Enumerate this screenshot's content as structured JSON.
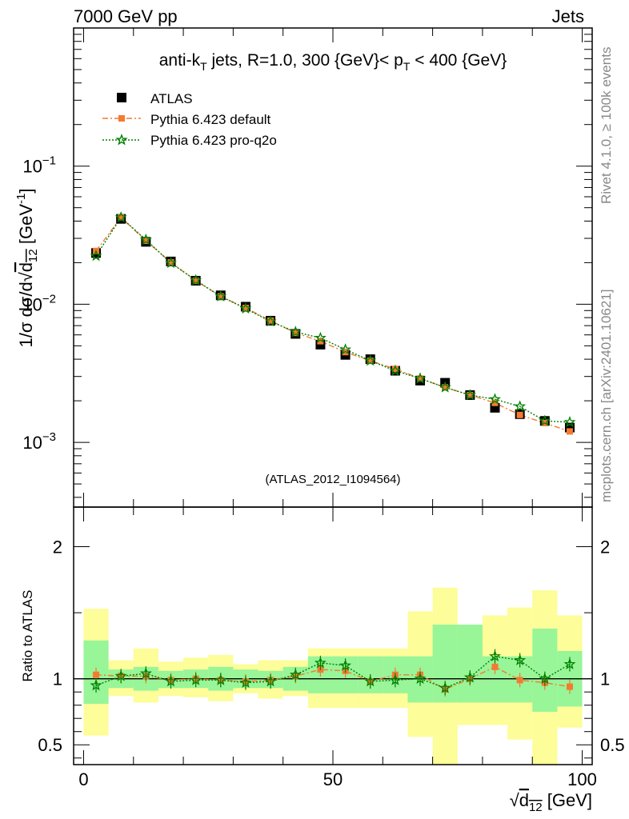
{
  "header": {
    "left": "7000 GeV pp",
    "right": "Jets"
  },
  "side": {
    "rivet": "Rivet 4.1.0, ≥ 100k events",
    "source": "mcplots.cern.ch [arXiv:2401.10621]"
  },
  "colors": {
    "atlas": "#000000",
    "default": "#f47a30",
    "proq2o": "#008000",
    "band_inner": "#98f598",
    "band_outer": "#fdfd99"
  },
  "chart_data": [
    {
      "type": "scatter",
      "panel": "main",
      "title_parts": {
        "lead": "anti-k",
        "lead_sub": "T",
        "mid": " jets, R=1.0, 300 {GeV}< p",
        "mid_sub": "T",
        "tail": " < 400 {GeV}"
      },
      "ylabel_parts": {
        "lead": "1/σ dσ/d",
        "root_sub": "12",
        "root_d": "d",
        "tail": " [GeV",
        "tail_sup": "-1",
        "end": "]"
      },
      "yscale": "log",
      "ylim": [
        0.00034,
        1.0
      ],
      "xlim": [
        -2,
        102
      ],
      "ytick_labels": [
        "10",
        "10",
        "10"
      ],
      "ytick_exponents": [
        "−1",
        "−2",
        "−3"
      ],
      "ytick_values": [
        0.1,
        0.01,
        0.001
      ],
      "watermark": "(ATLAS_2012_I1094564)",
      "legend": [
        "ATLAS",
        "Pythia 6.423 default",
        "Pythia 6.423 pro-q2o"
      ],
      "x": [
        2.5,
        7.5,
        12.5,
        17.5,
        22.5,
        27.5,
        32.5,
        37.5,
        42.5,
        47.5,
        52.5,
        57.5,
        62.5,
        67.5,
        72.5,
        77.5,
        82.5,
        87.5,
        92.5,
        97.5
      ],
      "series": [
        {
          "name": "ATLAS",
          "values": [
            0.0235,
            0.0415,
            0.0283,
            0.0204,
            0.0148,
            0.0116,
            0.0096,
            0.0076,
            0.0061,
            0.0051,
            0.0043,
            0.004,
            0.0033,
            0.0028,
            0.0027,
            0.0022,
            0.00178,
            0.0016,
            0.00143,
            0.00128
          ]
        },
        {
          "name": "Pythia 6.423 default",
          "values": [
            0.0243,
            0.0425,
            0.0288,
            0.0201,
            0.0148,
            0.0114,
            0.0094,
            0.0076,
            0.0062,
            0.0054,
            0.0045,
            0.0039,
            0.0034,
            0.0029,
            0.0025,
            0.0022,
            0.00193,
            0.00158,
            0.00138,
            0.0012
          ]
        },
        {
          "name": "Pythia 6.423 pro-q2o",
          "values": [
            0.0224,
            0.0425,
            0.0293,
            0.0199,
            0.0149,
            0.0114,
            0.0093,
            0.0075,
            0.0063,
            0.0057,
            0.0047,
            0.0039,
            0.0033,
            0.0029,
            0.0025,
            0.0022,
            0.00205,
            0.00182,
            0.00143,
            0.0014
          ]
        }
      ]
    },
    {
      "type": "scatter",
      "panel": "ratio",
      "ylabel": "Ratio to ATLAS",
      "ylim": [
        0.35,
        2.3
      ],
      "xlim": [
        -2,
        102
      ],
      "ytick_labels": [
        "2",
        "1",
        "0.5"
      ],
      "ytick_values": [
        2,
        1,
        0.5
      ],
      "xtick_labels": [
        "0",
        "50",
        "100"
      ],
      "xtick_values": [
        0,
        50,
        100
      ],
      "xlabel_parts": {
        "root_d": "d",
        "root_sub": "12",
        "tail": " [GeV]"
      },
      "x": [
        2.5,
        7.5,
        12.5,
        17.5,
        22.5,
        27.5,
        32.5,
        37.5,
        42.5,
        47.5,
        52.5,
        57.5,
        62.5,
        67.5,
        72.5,
        77.5,
        82.5,
        87.5,
        92.5,
        97.5
      ],
      "bin_edges": [
        0,
        5,
        10,
        15,
        20,
        25,
        30,
        35,
        40,
        45,
        50,
        55,
        60,
        65,
        70,
        75,
        80,
        85,
        90,
        95,
        100
      ],
      "band_inner": [
        [
          0.81,
          1.29
        ],
        [
          0.93,
          1.07
        ],
        [
          0.91,
          1.09
        ],
        [
          0.93,
          1.06
        ],
        [
          0.93,
          1.07
        ],
        [
          0.91,
          1.09
        ],
        [
          0.93,
          1.07
        ],
        [
          0.93,
          1.06
        ],
        [
          0.91,
          1.09
        ],
        [
          0.89,
          1.17
        ],
        [
          0.89,
          1.17
        ],
        [
          0.89,
          1.17
        ],
        [
          0.89,
          1.17
        ],
        [
          0.82,
          1.17
        ],
        [
          0.82,
          1.41
        ],
        [
          0.82,
          1.41
        ],
        [
          0.82,
          1.17
        ],
        [
          0.82,
          1.17
        ],
        [
          0.75,
          1.38
        ],
        [
          0.79,
          1.21
        ]
      ],
      "band_outer": [
        [
          0.57,
          1.53
        ],
        [
          0.87,
          1.14
        ],
        [
          0.82,
          1.23
        ],
        [
          0.87,
          1.13
        ],
        [
          0.86,
          1.16
        ],
        [
          0.83,
          1.18
        ],
        [
          0.89,
          1.11
        ],
        [
          0.85,
          1.14
        ],
        [
          0.87,
          1.14
        ],
        [
          0.78,
          1.23
        ],
        [
          0.78,
          1.23
        ],
        [
          0.78,
          1.23
        ],
        [
          0.78,
          1.23
        ],
        [
          0.56,
          1.51
        ],
        [
          0.33,
          1.69
        ],
        [
          0.65,
          1.39
        ],
        [
          0.65,
          1.48
        ],
        [
          0.54,
          1.54
        ],
        [
          0.33,
          1.67
        ],
        [
          0.63,
          1.48
        ]
      ],
      "series": [
        {
          "name": "Pythia 6.423 default",
          "values": [
            1.03,
            1.02,
            1.02,
            0.99,
            1.0,
            0.99,
            0.98,
            0.99,
            1.02,
            1.07,
            1.06,
            0.98,
            1.03,
            1.03,
            0.92,
            1.0,
            1.09,
            0.99,
            0.97,
            0.94
          ]
        },
        {
          "name": "Pythia 6.423 pro-q2o",
          "values": [
            0.95,
            1.02,
            1.04,
            0.98,
            0.99,
            0.99,
            0.97,
            0.98,
            1.03,
            1.12,
            1.1,
            0.98,
            0.99,
            1.0,
            0.93,
            1.01,
            1.17,
            1.14,
            1.0,
            1.11
          ]
        }
      ]
    }
  ]
}
